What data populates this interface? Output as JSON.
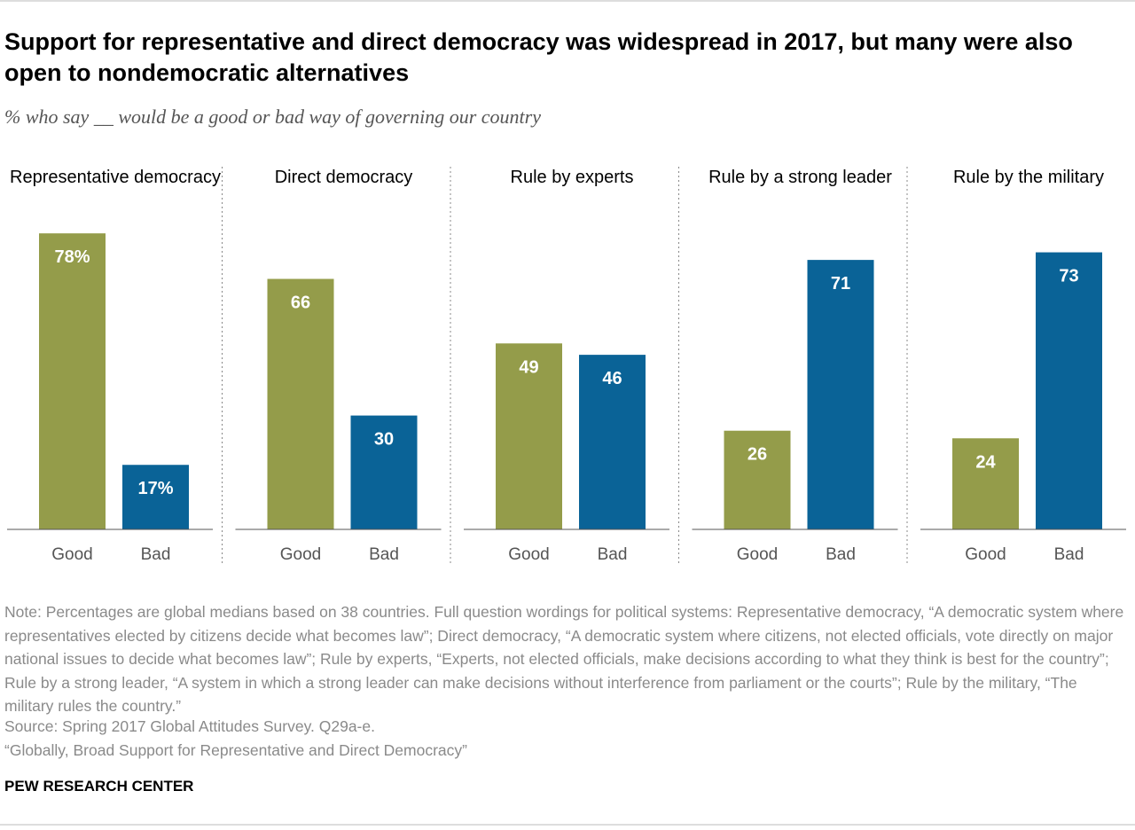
{
  "title": "Support for representative and direct democracy was widespread in 2017, but many were also open to nondemocratic alternatives",
  "subtitle": "% who say __ would be a good or bad way of governing our country",
  "note": "Note: Percentages are global medians based on 38 countries. Full question wordings for political systems: Representative democracy, “A democratic system where representatives elected by citizens decide what becomes law”; Direct democracy, “A democratic system where citizens, not elected officials, vote directly on major national issues to decide what becomes law”; Rule by experts, “Experts, not elected officials, make decisions according to what they think is best for the country”; Rule by a strong leader, “A system in which a strong leader can make decisions without interference from parliament or the courts”; Rule by the military, “The military rules the country.”",
  "source": "Source: Spring 2017 Global Attitudes Survey. Q29a-e.",
  "report": "“Globally, Broad Support for Representative and Direct Democracy”",
  "footer": "PEW RESEARCH CENTER",
  "chart_data": [
    {
      "type": "bar",
      "title": "Representative democracy",
      "categories": [
        "Good",
        "Bad"
      ],
      "values": [
        78,
        17
      ],
      "value_labels": [
        "78%",
        "17%"
      ],
      "colors": [
        "#949c4a",
        "#0a6397"
      ],
      "ylim": [
        0,
        100
      ]
    },
    {
      "type": "bar",
      "title": "Direct democracy",
      "categories": [
        "Good",
        "Bad"
      ],
      "values": [
        66,
        30
      ],
      "colors": [
        "#949c4a",
        "#0a6397"
      ],
      "ylim": [
        0,
        100
      ]
    },
    {
      "type": "bar",
      "title": "Rule by experts",
      "categories": [
        "Good",
        "Bad"
      ],
      "values": [
        49,
        46
      ],
      "colors": [
        "#949c4a",
        "#0a6397"
      ],
      "ylim": [
        0,
        100
      ]
    },
    {
      "type": "bar",
      "title": "Rule by a strong leader",
      "categories": [
        "Good",
        "Bad"
      ],
      "values": [
        26,
        71
      ],
      "colors": [
        "#949c4a",
        "#0a6397"
      ],
      "ylim": [
        0,
        100
      ]
    },
    {
      "type": "bar",
      "title": "Rule by the military",
      "categories": [
        "Good",
        "Bad"
      ],
      "values": [
        24,
        73
      ],
      "colors": [
        "#949c4a",
        "#0a6397"
      ],
      "ylim": [
        0,
        100
      ]
    }
  ]
}
